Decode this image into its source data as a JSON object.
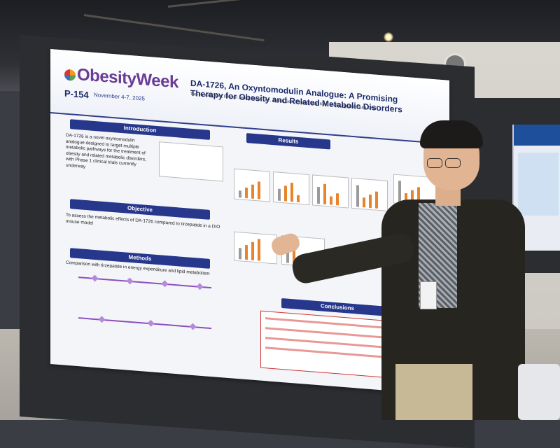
{
  "poster": {
    "brand": "ObesityWeek",
    "poster_id": "P-154",
    "dates": "November 4-7, 2025",
    "title": "DA-1726, An Oxyntomodulin Analogue: A Promising Therapy for Obesity and Related Metabolic Disorders",
    "authors": "Tae-Hyoung Kim, Il-Hoon Jeong, Sujin Lee, Jiyoun Seo, Hyung Hoon Kim, Mi-Kyung Kim, Yura Choi",
    "sections": {
      "introduction": "Introduction",
      "objective": "Objective",
      "methods": "Methods",
      "results": "Results",
      "conclusions": "Conclusions"
    },
    "intro_text": "DA-1726 is a novel oxyntomodulin analogue designed to target multiple metabolic pathways for the treatment of obesity and related metabolic disorders, with Phase 1 clinical trials currently underway",
    "objective_text": "To assess the metabolic effects of DA-1726 compared to tirzepatide in a DIO mouse model",
    "methods_text": "Comparison with tirzepatide in energy expenditure and lipid metabolism"
  },
  "colors": {
    "band": "#27378c",
    "brand": "#6a3c96",
    "accent_red": "#d9534f",
    "bar_orange": "#e8842c",
    "bar_gray": "#9a9a9a"
  }
}
